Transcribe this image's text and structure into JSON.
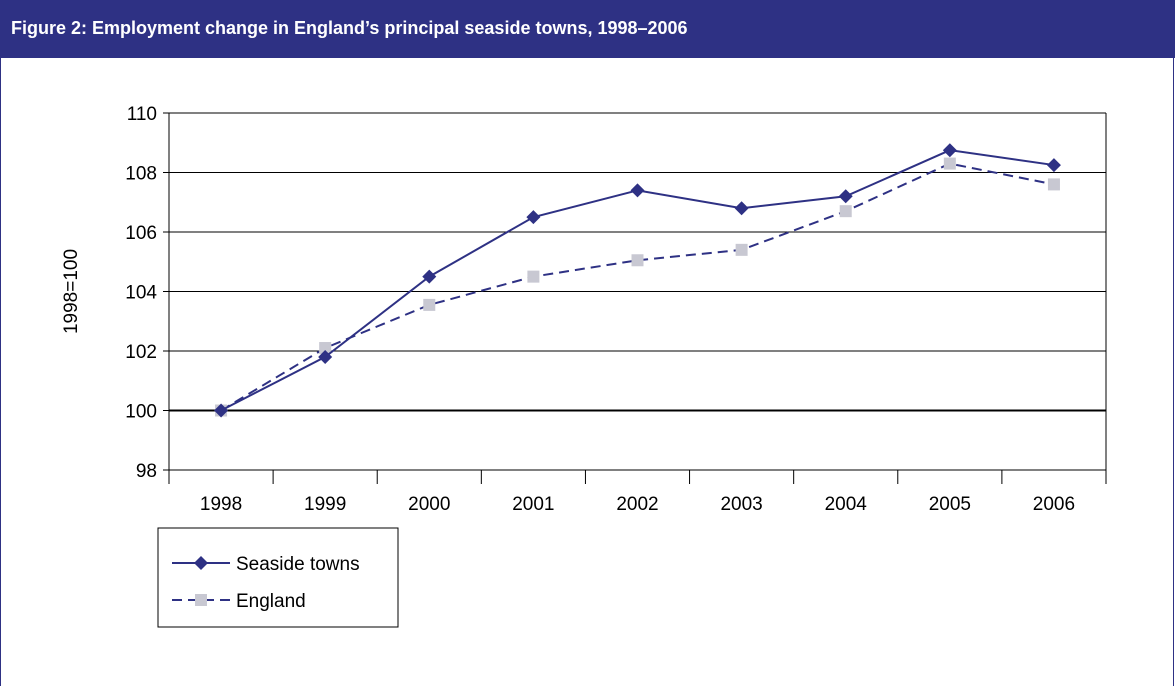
{
  "figure": {
    "title": "Figure 2: Employment change in England’s principal seaside towns, 1998–2006"
  },
  "colors": {
    "header_bg": "#2e3184",
    "header_text": "#ffffff",
    "seaside": "#2e3184",
    "england_line": "#2e3184",
    "england_marker": "#c8c8d2",
    "grid": "#000000"
  },
  "chart_data": {
    "type": "line",
    "title": "",
    "xlabel": "",
    "ylabel": "1998=100",
    "ylim": [
      98,
      110
    ],
    "yticks": [
      98,
      100,
      102,
      104,
      106,
      108,
      110
    ],
    "grid": true,
    "legend_position": "bottom-left",
    "categories": [
      "1998",
      "1999",
      "2000",
      "2001",
      "2002",
      "2003",
      "2004",
      "2005",
      "2006"
    ],
    "series": [
      {
        "name": "Seaside towns",
        "line_style": "solid",
        "marker": "diamond",
        "values": [
          100,
          101.8,
          104.5,
          106.5,
          107.4,
          106.8,
          107.2,
          108.75,
          108.25
        ]
      },
      {
        "name": "England",
        "line_style": "dashed",
        "marker": "square",
        "values": [
          100,
          102.1,
          103.55,
          104.5,
          105.05,
          105.4,
          106.7,
          108.3,
          107.6
        ]
      }
    ]
  }
}
